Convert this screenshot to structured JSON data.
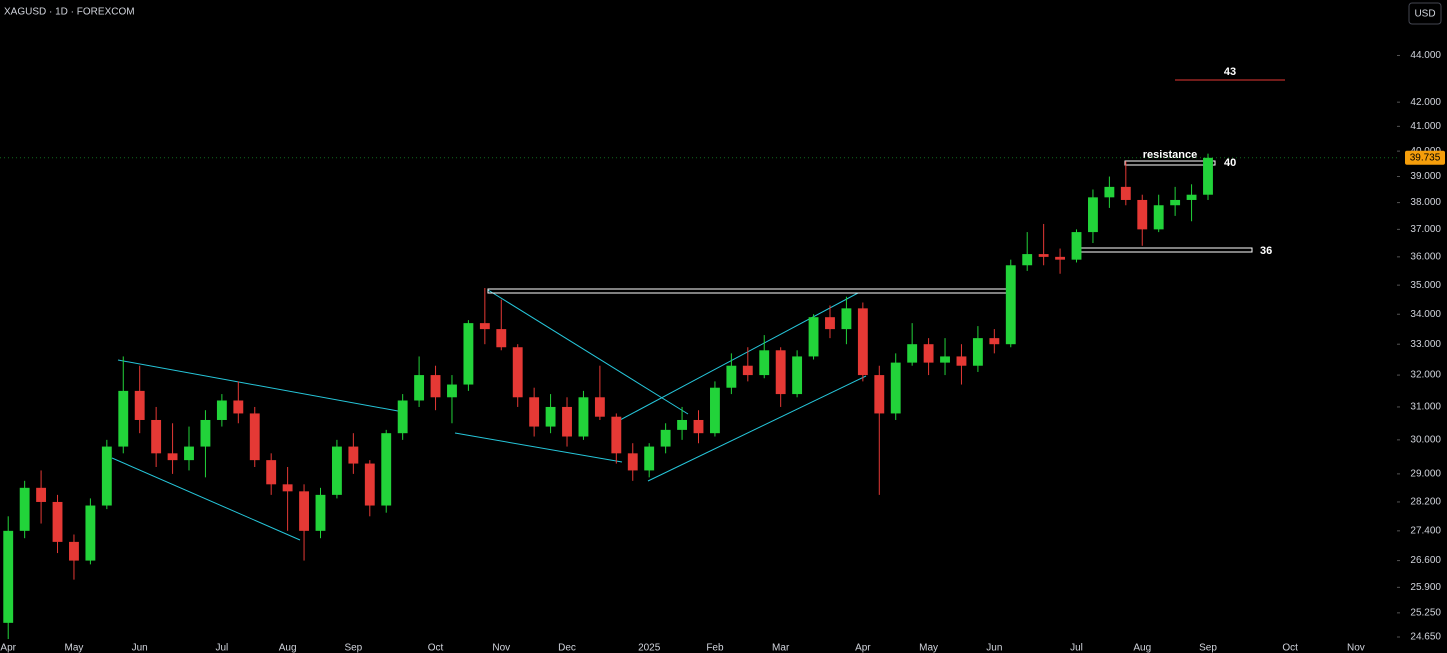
{
  "header": {
    "symbol": "XAGUSD · 1D · FOREXCOM",
    "currency_button": "USD"
  },
  "chart_data": {
    "type": "candlestick",
    "log_scale": true,
    "grid": false,
    "up_color": "#22d33a",
    "down_color": "#e53935",
    "categories": [
      "Apr",
      null,
      null,
      null,
      "May",
      null,
      null,
      null,
      "Jun",
      null,
      null,
      null,
      null,
      "Jul",
      null,
      null,
      null,
      "Aug",
      null,
      null,
      null,
      "Sep",
      null,
      null,
      null,
      null,
      "Oct",
      null,
      null,
      null,
      "Nov",
      null,
      null,
      null,
      "Dec",
      null,
      null,
      null,
      null,
      "2025",
      null,
      null,
      null,
      "Feb",
      null,
      null,
      null,
      "Mar",
      null,
      null,
      null,
      null,
      "Apr",
      null,
      null,
      null,
      "May",
      null,
      null,
      null,
      "Jun",
      null,
      null,
      null,
      null,
      "Jul",
      null,
      null,
      null,
      "Aug",
      null,
      null,
      null,
      "Sep",
      null,
      null,
      null,
      null,
      "Oct",
      null,
      null,
      null,
      "Nov",
      null,
      null
    ],
    "open": [
      25.0,
      27.4,
      28.6,
      28.2,
      27.1,
      26.6,
      28.1,
      29.8,
      31.5,
      30.6,
      29.6,
      29.4,
      29.8,
      30.6,
      31.2,
      30.8,
      29.4,
      28.7,
      28.5,
      27.4,
      28.4,
      29.8,
      29.3,
      28.1,
      30.2,
      31.2,
      32.0,
      31.3,
      31.7,
      33.7,
      33.5,
      32.9,
      31.3,
      30.4,
      31.0,
      30.1,
      31.3,
      30.7,
      29.6,
      29.1,
      29.8,
      30.3,
      30.6,
      30.2,
      31.6,
      32.3,
      32.0,
      32.8,
      31.4,
      32.6,
      33.9,
      33.5,
      34.2,
      32.0,
      30.8,
      32.4,
      33.0,
      32.4,
      32.6,
      32.3,
      33.2,
      33.0,
      35.7,
      36.1,
      36.0,
      35.9,
      36.9,
      38.2,
      38.6,
      38.1,
      37.0,
      37.9,
      38.1,
      38.3,
      null,
      null,
      null,
      null,
      null,
      null,
      null,
      null,
      null,
      null,
      null
    ],
    "high": [
      27.8,
      28.8,
      29.1,
      28.4,
      27.3,
      28.3,
      30.0,
      32.6,
      32.3,
      31.0,
      30.5,
      30.4,
      30.9,
      31.4,
      31.8,
      31.0,
      29.6,
      29.2,
      28.7,
      28.6,
      30.0,
      30.2,
      29.4,
      30.3,
      31.4,
      32.6,
      32.3,
      32.0,
      33.8,
      34.9,
      34.5,
      33.0,
      31.6,
      31.4,
      31.3,
      31.5,
      32.3,
      30.8,
      29.9,
      29.9,
      30.5,
      31.0,
      30.9,
      31.8,
      32.7,
      32.9,
      33.3,
      32.9,
      32.8,
      34.0,
      34.3,
      34.6,
      34.4,
      32.3,
      32.7,
      33.7,
      33.2,
      33.2,
      33.0,
      33.6,
      33.5,
      35.9,
      36.9,
      37.2,
      36.3,
      37.0,
      38.5,
      39.0,
      39.6,
      38.3,
      38.3,
      38.6,
      38.7,
      39.9,
      null,
      null,
      null,
      null,
      null,
      null,
      null,
      null,
      null,
      null,
      null
    ],
    "low": [
      24.6,
      27.2,
      27.6,
      26.8,
      26.1,
      26.5,
      28.0,
      29.6,
      30.2,
      29.2,
      29.0,
      29.1,
      28.9,
      30.4,
      30.5,
      29.2,
      28.4,
      27.4,
      26.6,
      27.2,
      28.3,
      29.0,
      27.8,
      27.9,
      30.0,
      31.0,
      30.9,
      30.5,
      31.5,
      33.0,
      32.8,
      31.0,
      30.1,
      30.2,
      29.8,
      30.0,
      30.6,
      29.3,
      28.8,
      28.9,
      29.6,
      30.0,
      29.9,
      30.1,
      31.4,
      31.8,
      31.9,
      31.0,
      31.3,
      32.5,
      33.2,
      33.0,
      31.8,
      28.4,
      30.6,
      32.3,
      32.0,
      32.0,
      31.7,
      32.1,
      32.7,
      32.9,
      35.5,
      35.7,
      35.4,
      35.8,
      36.5,
      37.8,
      37.9,
      36.4,
      36.9,
      37.5,
      37.3,
      38.1,
      null,
      null,
      null,
      null,
      null,
      null,
      null,
      null,
      null,
      null,
      null
    ],
    "close": [
      27.4,
      28.6,
      28.2,
      27.1,
      26.6,
      28.1,
      29.8,
      31.5,
      30.6,
      29.6,
      29.4,
      29.8,
      30.6,
      31.2,
      30.8,
      29.4,
      28.7,
      28.5,
      27.4,
      28.4,
      29.8,
      29.3,
      28.1,
      30.2,
      31.2,
      32.0,
      31.3,
      31.7,
      33.7,
      33.5,
      32.9,
      31.3,
      30.4,
      31.0,
      30.1,
      31.3,
      30.7,
      29.6,
      29.1,
      29.8,
      30.3,
      30.6,
      30.2,
      31.6,
      32.3,
      32.0,
      32.8,
      31.4,
      32.6,
      33.9,
      33.5,
      34.2,
      32.0,
      30.8,
      32.4,
      33.0,
      32.4,
      32.6,
      32.3,
      33.2,
      33.0,
      35.7,
      36.1,
      36.0,
      35.9,
      36.9,
      38.2,
      38.6,
      38.1,
      37.0,
      37.9,
      38.1,
      38.3,
      39.735,
      null,
      null,
      null,
      null,
      null,
      null,
      null,
      null,
      null,
      null,
      null
    ],
    "last_price": 39.735,
    "ylim": [
      24.26,
      46.5
    ],
    "yticks": [
      {
        "value": 24.65,
        "label": "24.650"
      },
      {
        "value": 25.25,
        "label": "25.250"
      },
      {
        "value": 25.9,
        "label": "25.900"
      },
      {
        "value": 26.6,
        "label": "26.600"
      },
      {
        "value": 27.4,
        "label": "27.400"
      },
      {
        "value": 28.2,
        "label": "28.200"
      },
      {
        "value": 29,
        "label": "29.000"
      },
      {
        "value": 30,
        "label": "30.000"
      },
      {
        "value": 31,
        "label": "31.000"
      },
      {
        "value": 32,
        "label": "32.000"
      },
      {
        "value": 33,
        "label": "33.000"
      },
      {
        "value": 34,
        "label": "34.000"
      },
      {
        "value": 35,
        "label": "35.000"
      },
      {
        "value": 36,
        "label": "36.000"
      },
      {
        "value": 37,
        "label": "37.000"
      },
      {
        "value": 38,
        "label": "38.000"
      },
      {
        "value": 39,
        "label": "39.000"
      },
      {
        "value": 40,
        "label": "40.000"
      },
      {
        "value": 41,
        "label": "41.000"
      },
      {
        "value": 42,
        "label": "42.000"
      },
      {
        "value": 44,
        "label": "44.000"
      }
    ],
    "annotations": {
      "target_high": "43",
      "resistance": "resistance",
      "level_40": "40",
      "level_36": "36"
    }
  }
}
